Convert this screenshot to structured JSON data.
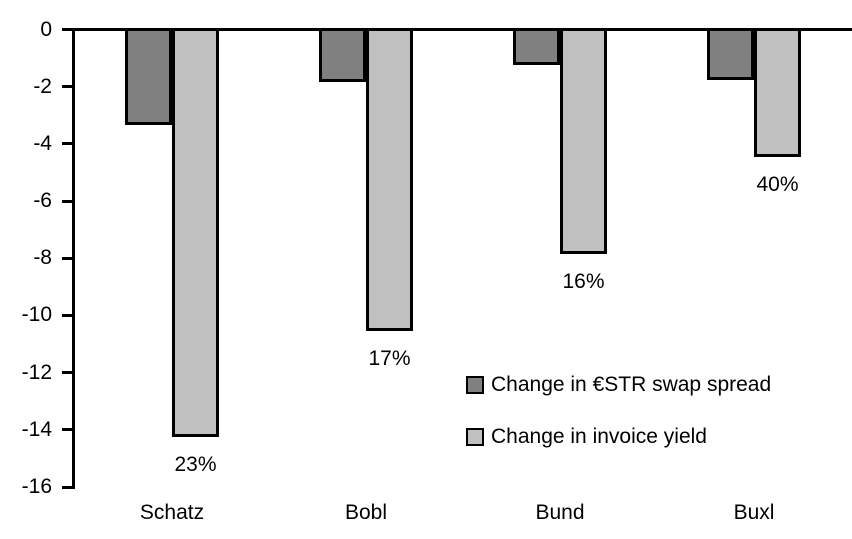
{
  "figure": {
    "background": "#ffffff",
    "text_color": "#000000",
    "axis_color": "#000000"
  },
  "chart_data": {
    "type": "bar",
    "orientation": "vertical",
    "title": "",
    "xlabel": "",
    "ylabel": "",
    "categories": [
      "Schatz",
      "Bobl",
      "Bund",
      "Buxl"
    ],
    "series": [
      {
        "name": "Change in €STR swap spread",
        "color": "#808080",
        "values": [
          -3.3,
          -1.8,
          -1.2,
          -1.7
        ]
      },
      {
        "name": "Change in invoice yield",
        "color": "#c0c0c0",
        "values": [
          -14.2,
          -10.5,
          -7.8,
          -4.4
        ],
        "point_labels": [
          "23%",
          "17%",
          "16%",
          "40%"
        ]
      }
    ],
    "ylim": [
      -16,
      0
    ],
    "yticks": [
      0,
      -2,
      -4,
      -6,
      -8,
      -10,
      -12,
      -14,
      -16
    ],
    "grid": false,
    "bar_border_color": "#000000",
    "legend_position": "inside-right"
  }
}
